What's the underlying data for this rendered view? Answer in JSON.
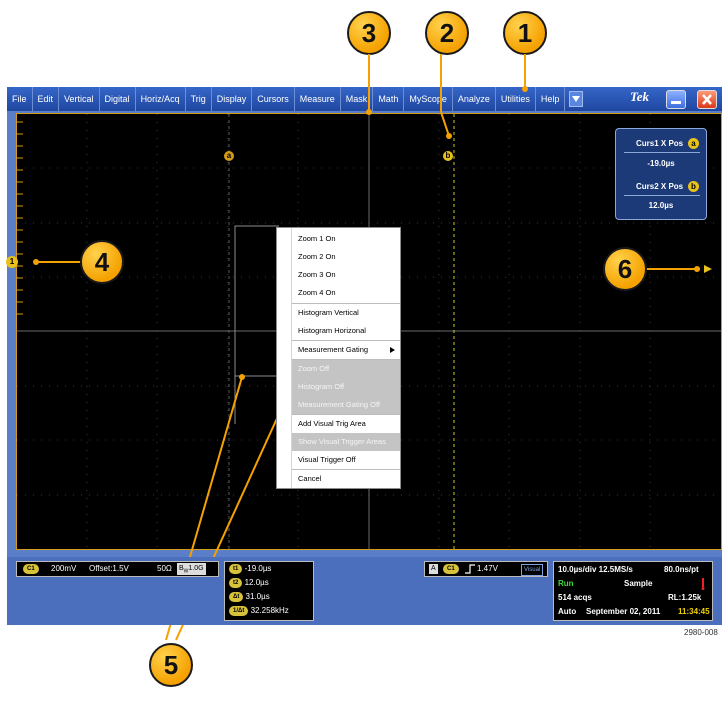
{
  "menubar": {
    "items": [
      "File",
      "Edit",
      "Vertical",
      "Digital",
      "Horiz/Acq",
      "Trig",
      "Display",
      "Cursors",
      "Measure",
      "Mask",
      "Math",
      "MyScope",
      "Analyze",
      "Utilities",
      "Help"
    ],
    "brand": "Tek",
    "dropdown_icon": "dropdown-arrow-icon"
  },
  "callouts": [
    "1",
    "2",
    "3",
    "4",
    "5",
    "6"
  ],
  "cursor_markers": {
    "a": "a",
    "b": "b",
    "ch1": "1"
  },
  "context_menu": {
    "items": [
      {
        "label": "Zoom 1 On",
        "disabled": false
      },
      {
        "label": "Zoom 2 On",
        "disabled": false
      },
      {
        "label": "Zoom 3 On",
        "disabled": false
      },
      {
        "label": "Zoom 4 On",
        "disabled": false
      },
      {
        "label": "Histogram Vertical",
        "disabled": false
      },
      {
        "label": "Histogram Horizonal",
        "disabled": false
      },
      {
        "label": "Measurement Gating",
        "disabled": false,
        "submenu": true
      },
      {
        "label": "Zoom Off",
        "disabled": true
      },
      {
        "label": "Histogram Off",
        "disabled": true
      },
      {
        "label": "Measurement Gating Off",
        "disabled": true
      },
      {
        "label": "Add Visual Trig Area",
        "disabled": false
      },
      {
        "label": "Show Visual Trigger Areas",
        "disabled": true
      },
      {
        "label": "Visual Trigger Off",
        "disabled": false
      },
      {
        "label": "Cancel",
        "disabled": false
      }
    ]
  },
  "cursor_readout": {
    "curs1_label": "Curs1 X Pos",
    "curs1_badge": "a",
    "curs1_value": "-19.0µs",
    "curs2_label": "Curs2 X Pos",
    "curs2_badge": "b",
    "curs2_value": "12.0µs"
  },
  "channel": {
    "badge": "C1",
    "scale": "200mV",
    "offset": "Offset:1.5V",
    "impedance": "50Ω",
    "bw": "B",
    "bw_sub": "W",
    "bw_value": "1.0G"
  },
  "cursor_values": {
    "t1_badge": "t1",
    "t1": "-19.0µs",
    "t2_badge": "t2",
    "t2": "12.0µs",
    "dt_badge": "Δt",
    "dt": "31.0µs",
    "inv_badge": "1/Δt",
    "inv": "32.258kHz"
  },
  "trigger": {
    "mode": "A",
    "channel": "C1",
    "level": "1.47V",
    "visual": "Visual"
  },
  "acquisition": {
    "timebase": "10.0µs/div 12.5MS/s",
    "resolution": "80.0ns/pt",
    "state": "Run",
    "mode": "Sample",
    "acqs": "514 acqs",
    "record_length": "RL:1.25k",
    "trigger_mode": "Auto",
    "date": "September 02, 2011",
    "time": "11:34:45"
  },
  "figure_number": "2980-008",
  "colors": {
    "accent": "#f5a100",
    "menubar": "#2855b3",
    "trace_gold": "#d39b17",
    "run_green": "#3cdc3c",
    "time_yellow": "#f0d000"
  }
}
